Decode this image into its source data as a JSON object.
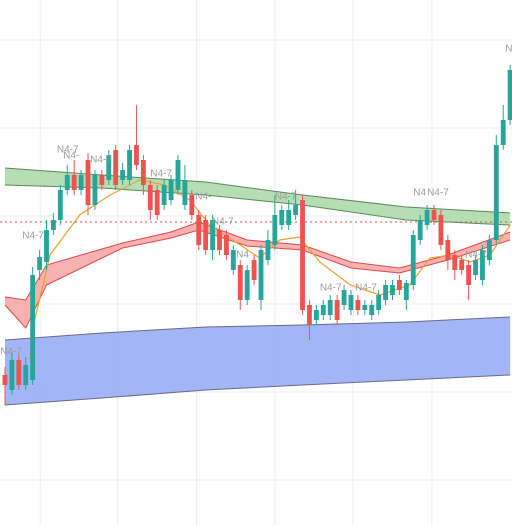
{
  "chart_data": {
    "type": "candlestick",
    "xlim": [
      -0.72,
      73.27
    ],
    "ylim": [
      0,
      525
    ],
    "grid": true,
    "xticks": [
      5.1,
      16.3,
      27.7,
      39.0,
      50.3,
      61.7
    ],
    "yticks": [
      485,
      397,
      309,
      221,
      133,
      45
    ],
    "up_color": "#26a69a",
    "down_color": "#ef5350",
    "candles": {
      "open": [
        150,
        135,
        165,
        140,
        145,
        255,
        263,
        295,
        305,
        335,
        350,
        335,
        365,
        320,
        350,
        345,
        375,
        345,
        345,
        380,
        365,
        340,
        335,
        320,
        325,
        335,
        320,
        330,
        310,
        305,
        275,
        295,
        290,
        255,
        260,
        225,
        265,
        225,
        265,
        280,
        300,
        300,
        310,
        325,
        220,
        205,
        210,
        210,
        225,
        220,
        215,
        225,
        215,
        210,
        215,
        225,
        230,
        245,
        225,
        240,
        285,
        300,
        315,
        310,
        285,
        270,
        265,
        260,
        250,
        245,
        265,
        285,
        380,
        405
      ],
      "high": [
        158,
        172,
        170,
        168,
        258,
        275,
        305,
        312,
        340,
        360,
        365,
        355,
        372,
        355,
        355,
        375,
        380,
        362,
        380,
        420,
        370,
        345,
        340,
        345,
        350,
        370,
        360,
        335,
        315,
        310,
        310,
        300,
        295,
        280,
        265,
        260,
        270,
        280,
        295,
        330,
        320,
        325,
        335,
        330,
        225,
        220,
        225,
        230,
        230,
        240,
        235,
        230,
        225,
        225,
        235,
        245,
        245,
        250,
        245,
        295,
        310,
        320,
        320,
        315,
        290,
        275,
        270,
        265,
        270,
        280,
        290,
        390,
        420,
        460
      ],
      "low": [
        120,
        130,
        135,
        135,
        140,
        245,
        255,
        290,
        300,
        330,
        330,
        330,
        310,
        315,
        335,
        340,
        335,
        340,
        340,
        355,
        330,
        305,
        305,
        315,
        320,
        330,
        315,
        305,
        275,
        270,
        265,
        270,
        265,
        250,
        215,
        220,
        240,
        215,
        260,
        275,
        295,
        295,
        305,
        210,
        185,
        200,
        205,
        205,
        200,
        215,
        210,
        210,
        210,
        205,
        210,
        220,
        225,
        230,
        215,
        235,
        280,
        295,
        300,
        275,
        255,
        245,
        250,
        225,
        245,
        240,
        260,
        280,
        375,
        400
      ],
      "close": [
        140,
        165,
        140,
        160,
        250,
        268,
        295,
        305,
        335,
        350,
        335,
        350,
        320,
        350,
        340,
        370,
        340,
        355,
        375,
        360,
        340,
        315,
        310,
        340,
        345,
        365,
        345,
        310,
        280,
        275,
        305,
        275,
        270,
        275,
        225,
        255,
        245,
        275,
        285,
        310,
        315,
        315,
        320,
        215,
        200,
        215,
        220,
        225,
        205,
        235,
        230,
        215,
        220,
        220,
        230,
        240,
        240,
        235,
        242,
        290,
        305,
        315,
        305,
        280,
        265,
        255,
        255,
        240,
        265,
        275,
        285,
        380,
        405,
        455
      ]
    },
    "bands": [
      {
        "x": [
          0,
          14,
          29,
          43,
          58,
          73
        ],
        "upper": [
          357,
          350,
          343,
          330,
          318,
          312
        ],
        "lower": [
          340,
          337,
          330,
          320,
          305,
          300
        ],
        "color": "#a8d8a8",
        "edge": "#5a8a5a"
      },
      {
        "x": [
          0,
          14,
          29,
          43,
          58,
          73
        ],
        "upper": [
          185,
          192,
          198,
          200,
          203,
          208
        ],
        "lower": [
          120,
          127,
          135,
          140,
          145,
          150
        ],
        "color": "#90a8f6",
        "edge": "#6a6a8a"
      },
      {
        "x": [
          0,
          3,
          6,
          17,
          24,
          28,
          35,
          43,
          50,
          57,
          64,
          73
        ],
        "upper": [
          228,
          225,
          260,
          282,
          293,
          303,
          285,
          280,
          263,
          257,
          270,
          293
        ],
        "lower": [
          220,
          197,
          240,
          277,
          287,
          295,
          279,
          275,
          257,
          252,
          265,
          285
        ],
        "color": "#f4a3a3",
        "edge": "#e04848"
      }
    ],
    "lines": [
      {
        "x": [
          3.6,
          4.3,
          6.5,
          10.8,
          15.2,
          19.5,
          23.1,
          26.7,
          29.6,
          34,
          36.8,
          39.7,
          42.6,
          45.5,
          49.9,
          54.2,
          58.5,
          61.4,
          64.3,
          67.2,
          70.1,
          73
        ],
        "values": [
          165,
          205,
          270,
          310,
          330,
          345,
          340,
          325,
          300,
          280,
          267,
          285,
          288,
          263,
          240,
          230,
          240,
          267,
          270,
          263,
          270,
          300
        ],
        "color": "#f0a030"
      }
    ],
    "hline": {
      "value": 303,
      "color": "#e05050"
    },
    "annotations": [
      {
        "text": "N4-7",
        "x": 7.5,
        "y": 375
      },
      {
        "text": "N4-",
        "x": 8.4,
        "y": 369
      },
      {
        "text": "N4-7",
        "x": 12.3,
        "y": 365
      },
      {
        "text": "N4-7",
        "x": 21.0,
        "y": 351
      },
      {
        "text": "N4-7",
        "x": 39.0,
        "y": 328
      },
      {
        "text": "N4-7",
        "x": 2.5,
        "y": 289
      },
      {
        "text": "N4-7",
        "x": 29.9,
        "y": 303
      },
      {
        "text": "N4-",
        "x": 27.5,
        "y": 328
      },
      {
        "text": "N4",
        "x": 59.0,
        "y": 332
      },
      {
        "text": "N4-7",
        "x": 61.0,
        "y": 332
      },
      {
        "text": "N4-7",
        "x": 66.5,
        "y": 270
      },
      {
        "text": "N4-7",
        "x": 45.5,
        "y": 237
      },
      {
        "text": "N4-7",
        "x": 50.6,
        "y": 237
      },
      {
        "text": "N4-7",
        "x": -0.7,
        "y": 173
      },
      {
        "text": "N",
        "x": 72.3,
        "y": 476
      },
      {
        "text": "N4",
        "x": 33.4,
        "y": 270
      }
    ]
  }
}
